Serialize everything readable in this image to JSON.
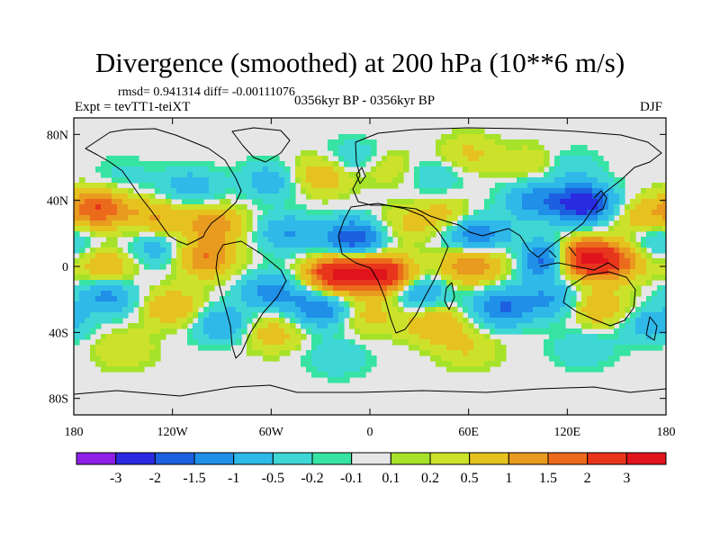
{
  "chart_data": {
    "type": "heatmap",
    "title": "Divergence (smoothed) at 200 hPa (10**6 m/s)",
    "stats_line": "rmsd= 0.941314 diff= -0.00111076",
    "left_subtitle": "Expt = tevTT1-teiXT",
    "center_subtitle": "0356kyr BP - 0356kyr BP",
    "right_subtitle": "DJF",
    "x_range": [
      -180,
      180
    ],
    "y_range": [
      -90,
      90
    ],
    "x_ticks": [
      {
        "value": -180,
        "label": "180"
      },
      {
        "value": -120,
        "label": "120W"
      },
      {
        "value": -60,
        "label": "60W"
      },
      {
        "value": 0,
        "label": "0"
      },
      {
        "value": 60,
        "label": "60E"
      },
      {
        "value": 120,
        "label": "120E"
      },
      {
        "value": 180,
        "label": "180"
      }
    ],
    "y_ticks": [
      {
        "value": 80,
        "label": "80N"
      },
      {
        "value": 40,
        "label": "40N"
      },
      {
        "value": 0,
        "label": "0"
      },
      {
        "value": -40,
        "label": "40S"
      },
      {
        "value": -80,
        "label": "80S"
      }
    ],
    "colorbar": {
      "colors": [
        "#8d1fe6",
        "#2a2ae0",
        "#1c5fe0",
        "#1f8fe8",
        "#2fb9e8",
        "#3fd6d6",
        "#37e3a3",
        "#e6e6e6",
        "#a6e22a",
        "#cce22a",
        "#e6c21f",
        "#e89b1f",
        "#ec6a1c",
        "#e8361c",
        "#e0141c"
      ],
      "labels": [
        "-3",
        "-2",
        "-1.5",
        "-1",
        "-0.5",
        "-0.2",
        "-0.1",
        "0.1",
        "0.2",
        "0.5",
        "1",
        "1.5",
        "2",
        "3"
      ]
    },
    "blobs": [
      {
        "lon": -165,
        "lat": 35,
        "v": 2
      },
      {
        "lon": -150,
        "lat": 55,
        "v": -0.3
      },
      {
        "lon": -130,
        "lat": 30,
        "v": 1
      },
      {
        "lon": -110,
        "lat": 48,
        "v": -0.8
      },
      {
        "lon": -95,
        "lat": 25,
        "v": 1.3
      },
      {
        "lon": -60,
        "lat": 52,
        "v": -0.8
      },
      {
        "lon": -30,
        "lat": 55,
        "v": 1
      },
      {
        "lon": -10,
        "lat": 65,
        "v": -0.6
      },
      {
        "lon": 10,
        "lat": 60,
        "v": 0.5
      },
      {
        "lon": 40,
        "lat": 55,
        "v": -0.5
      },
      {
        "lon": 60,
        "lat": 68,
        "v": 0.6
      },
      {
        "lon": 100,
        "lat": 62,
        "v": 0.5
      },
      {
        "lon": 120,
        "lat": 60,
        "v": -0.5
      },
      {
        "lon": -10,
        "lat": 17,
        "v": -2
      },
      {
        "lon": -50,
        "lat": 20,
        "v": -1
      },
      {
        "lon": 20,
        "lat": 25,
        "v": 0.5
      },
      {
        "lon": 45,
        "lat": 30,
        "v": 0.8
      },
      {
        "lon": 60,
        "lat": 20,
        "v": -1.2
      },
      {
        "lon": 80,
        "lat": 15,
        "v": -0.8
      },
      {
        "lon": 100,
        "lat": 40,
        "v": -1.2
      },
      {
        "lon": 130,
        "lat": 38,
        "v": -2.5
      },
      {
        "lon": 165,
        "lat": 30,
        "v": 0.8
      },
      {
        "lon": 175,
        "lat": 15,
        "v": -0.7
      },
      {
        "lon": 130,
        "lat": 5,
        "v": 3
      },
      {
        "lon": 150,
        "lat": 3,
        "v": 1.5
      },
      {
        "lon": 105,
        "lat": 5,
        "v": -2.5
      },
      {
        "lon": 90,
        "lat": 8,
        "v": 1.2
      },
      {
        "lon": 60,
        "lat": 0,
        "v": 1.5
      },
      {
        "lon": -20,
        "lat": -5,
        "v": 3
      },
      {
        "lon": 8,
        "lat": -5,
        "v": 3
      },
      {
        "lon": 30,
        "lat": -15,
        "v": -1.2
      },
      {
        "lon": -60,
        "lat": -15,
        "v": -1.2
      },
      {
        "lon": -100,
        "lat": 5,
        "v": 1.5
      },
      {
        "lon": -130,
        "lat": 10,
        "v": -0.8
      },
      {
        "lon": -160,
        "lat": 0,
        "v": 1
      },
      {
        "lon": -160,
        "lat": -18,
        "v": -1.2
      },
      {
        "lon": -120,
        "lat": -25,
        "v": 1
      },
      {
        "lon": -90,
        "lat": -35,
        "v": -1
      },
      {
        "lon": -60,
        "lat": -40,
        "v": 0.8
      },
      {
        "lon": -30,
        "lat": -25,
        "v": -1.5
      },
      {
        "lon": 0,
        "lat": -30,
        "v": 0.7
      },
      {
        "lon": 40,
        "lat": -35,
        "v": 1
      },
      {
        "lon": 80,
        "lat": -25,
        "v": -1.5
      },
      {
        "lon": 110,
        "lat": -20,
        "v": -1
      },
      {
        "lon": 140,
        "lat": -25,
        "v": 1
      },
      {
        "lon": 170,
        "lat": -35,
        "v": -0.8
      },
      {
        "lon": -150,
        "lat": -50,
        "v": 0.5
      },
      {
        "lon": -20,
        "lat": -55,
        "v": -0.5
      },
      {
        "lon": 60,
        "lat": -50,
        "v": 0.5
      },
      {
        "lon": 130,
        "lat": -50,
        "v": -0.5
      }
    ]
  }
}
